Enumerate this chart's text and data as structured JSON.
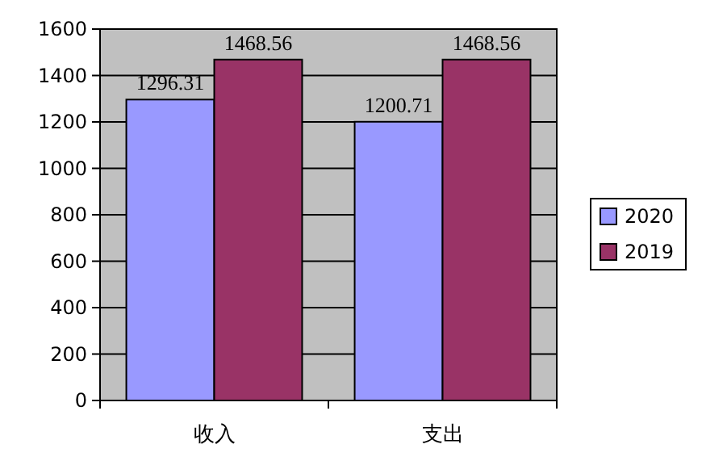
{
  "chart_data": {
    "type": "bar",
    "categories": [
      "收入",
      "支出"
    ],
    "series": [
      {
        "name": "2020",
        "color": "#9999ff",
        "values": [
          1296.31,
          1200.71
        ]
      },
      {
        "name": "2019",
        "color": "#993366",
        "values": [
          1468.56,
          1468.56
        ]
      }
    ],
    "ylim": [
      0,
      1600
    ],
    "yticks": [
      0,
      200,
      400,
      600,
      800,
      1000,
      1200,
      1400,
      1600
    ],
    "grid": "y",
    "legend": "right",
    "data_labels": true
  }
}
